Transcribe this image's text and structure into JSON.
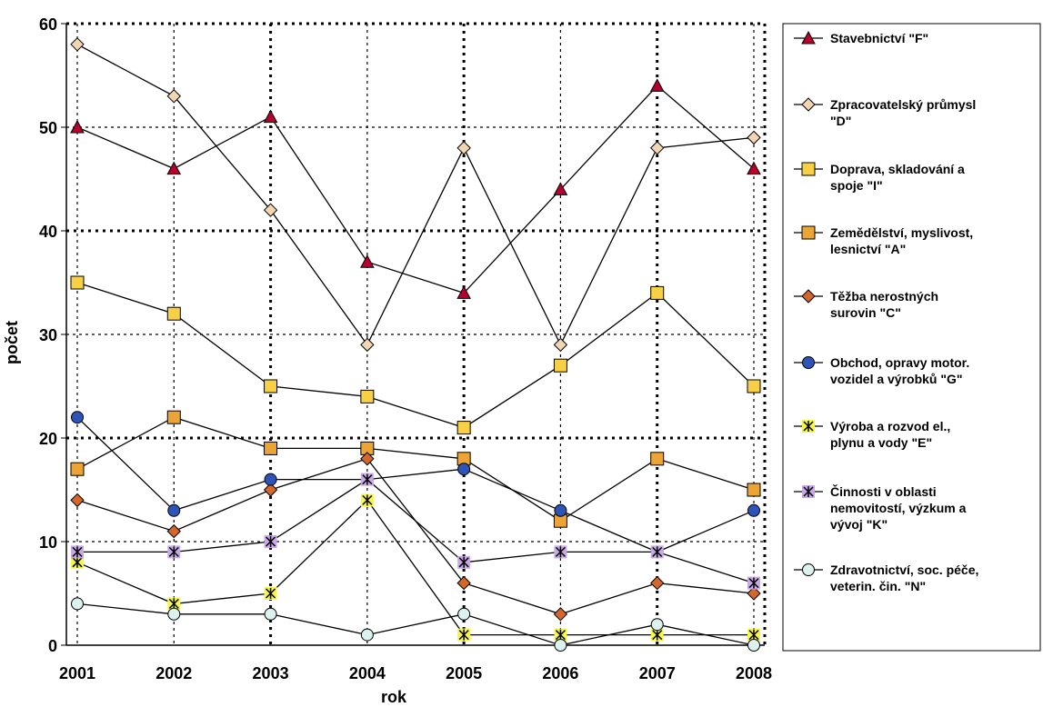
{
  "chart_data": {
    "type": "line",
    "title": "",
    "xlabel": "rok",
    "ylabel": "počet",
    "x": [
      "2001",
      "2002",
      "2003",
      "2004",
      "2005",
      "2006",
      "2007",
      "2008"
    ],
    "ylim": [
      0,
      60
    ],
    "yticks": [
      "0",
      "10",
      "20",
      "30",
      "40",
      "50",
      "60"
    ],
    "grid": true,
    "legend_position": "right",
    "series": [
      {
        "name": "Stavebnictví \"F\"",
        "values": [
          50,
          46,
          51,
          37,
          34,
          44,
          54,
          46
        ],
        "marker": "triangle",
        "color": "#b8002e"
      },
      {
        "name": "Zpracovatelský průmysl \"D\"",
        "values": [
          58,
          53,
          42,
          29,
          48,
          29,
          48,
          49
        ],
        "marker": "diamond",
        "color": "#f2d6b4"
      },
      {
        "name": "Doprava, skladování a spoje \"I\"",
        "values": [
          35,
          32,
          25,
          24,
          21,
          27,
          34,
          25
        ],
        "marker": "square",
        "color": "#f8d046"
      },
      {
        "name": "Zemědělství, myslivost, lesnictví \"A\"",
        "values": [
          17,
          22,
          19,
          19,
          18,
          12,
          18,
          15
        ],
        "marker": "square",
        "color": "#eba435"
      },
      {
        "name": "Těžba nerostných surovin \"C\"",
        "values": [
          14,
          11,
          15,
          18,
          6,
          3,
          6,
          5
        ],
        "marker": "diamond",
        "color": "#d7662b"
      },
      {
        "name": "Obchod, opravy motor. vozidel a výrobků \"G\"",
        "values": [
          22,
          13,
          16,
          16,
          17,
          13,
          9,
          13
        ],
        "marker": "circle",
        "color": "#2f54b8"
      },
      {
        "name": "Výroba a rozvod el., plynu a vody \"E\"",
        "values": [
          8,
          4,
          5,
          14,
          1,
          1,
          1,
          1
        ],
        "marker": "asterisk",
        "color": "#f6f64a"
      },
      {
        "name": "Činnosti v oblasti nemovitostí, výzkum a vývoj \"K\"",
        "values": [
          9,
          9,
          10,
          16,
          8,
          9,
          9,
          6
        ],
        "marker": "asterisk",
        "color": "#c8a8e6"
      },
      {
        "name": "Zdravotnictví, soc. péče, veterin. čin. \"N\"",
        "values": [
          4,
          3,
          3,
          1,
          3,
          0,
          2,
          0
        ],
        "marker": "circle",
        "color": "#dcf2ee"
      }
    ],
    "legend_lines": [
      [
        "Stavebnictví \"F\""
      ],
      [
        "Zpracovatelský průmysl",
        "\"D\""
      ],
      [
        "Doprava, skladování a",
        "spoje \"I\""
      ],
      [
        "Zemědělství, myslivost,",
        "lesnictví \"A\""
      ],
      [
        "Těžba nerostných",
        "surovin \"C\""
      ],
      [
        "Obchod, opravy motor.",
        "vozidel a výrobků \"G\""
      ],
      [
        "Výroba a rozvod el.,",
        "plynu a vody \"E\""
      ],
      [
        "Činnosti v oblasti",
        "nemovitostí, výzkum a",
        "vývoj \"K\""
      ],
      [
        "Zdravotnictví, soc. péče,",
        "veterin. čin. \"N\""
      ]
    ]
  }
}
